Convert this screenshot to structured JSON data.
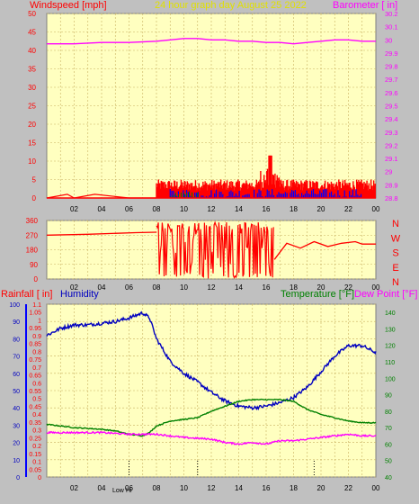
{
  "header": {
    "left_label": "Windspeed [mph]",
    "title": "24 hour graph day   August 25 2022",
    "right_label": "Barometer [ in]"
  },
  "colors": {
    "plot_bg": "#ffffc0",
    "frame_bg": "#c0c0c0",
    "grid": "#c8b060",
    "wind": "#ff0000",
    "gust": "#0000ff",
    "wind_green": "#008000",
    "barometer": "#ff00ff",
    "direction": "#ff0000",
    "humidity": "#0000c0",
    "temperature": "#008000",
    "dewpoint": "#ff00ff",
    "title": "#e0e000",
    "rain_axis": "#0000ff"
  },
  "x_ticks": [
    "02",
    "04",
    "06",
    "08",
    "10",
    "12",
    "14",
    "16",
    "18",
    "20",
    "22",
    "00"
  ],
  "direction_labels": [
    "N",
    "W",
    "S",
    "E",
    "N"
  ],
  "bottom_headers": {
    "rain": "Rainfall [ in]",
    "humidity": "Humidity",
    "temperature": "Temperature [°F]",
    "dewpoint": "Dew Point [°F]"
  },
  "bottom_markers": {
    "low": "Low",
    "hi": "Hi"
  },
  "chart_data": [
    {
      "type": "line",
      "name": "wind-barometer",
      "x_range": [
        0,
        24
      ],
      "y_left_ticks": [
        0,
        5,
        10,
        15,
        20,
        25,
        30,
        35,
        40,
        45,
        50
      ],
      "y_left_range": [
        0,
        50
      ],
      "y_right_ticks": [
        "28.8",
        "28.9",
        "29",
        "29.1",
        "29.2",
        "29.3",
        "29.4",
        "29.5",
        "29.6",
        "29.7",
        "29.8",
        "29.9",
        "30",
        "30.1",
        "30.2"
      ],
      "y_right_range": [
        28.8,
        30.2
      ],
      "barometer": {
        "x": [
          0,
          2,
          4,
          6,
          8,
          9,
          10,
          11,
          12,
          13,
          14,
          15,
          16,
          17,
          18,
          19,
          20,
          21,
          22,
          23,
          24
        ],
        "y": [
          29.97,
          29.97,
          29.98,
          29.98,
          29.99,
          30.0,
          30.01,
          30.01,
          30.0,
          30.0,
          29.99,
          29.99,
          29.98,
          29.98,
          29.97,
          29.98,
          29.99,
          30.0,
          30.0,
          29.99,
          29.99
        ]
      },
      "wind_baseline": {
        "x": [
          0,
          1.5,
          2.0,
          3.5,
          6.0,
          8.0
        ],
        "y": [
          0,
          1,
          0,
          1,
          0,
          0
        ]
      },
      "wind_active": {
        "x_start": 8.0,
        "x_end": 24,
        "peak_x": 16.3,
        "peak_y": 11.5
      }
    },
    {
      "type": "line",
      "name": "wind-direction",
      "x_range": [
        0,
        24
      ],
      "y_ticks": [
        0,
        90,
        180,
        270,
        360
      ],
      "y_range": [
        0,
        360
      ],
      "segments": [
        {
          "x": [
            0,
            3,
            6.5,
            8.0
          ],
          "y": [
            270,
            275,
            285,
            288
          ]
        },
        {
          "x": [
            16.6,
            17.5,
            18.5,
            19.5,
            20.5,
            21.5,
            22.5,
            23,
            24
          ],
          "y": [
            120,
            220,
            190,
            230,
            200,
            220,
            230,
            215,
            215
          ]
        }
      ],
      "active_range": [
        8.0,
        16.6
      ]
    },
    {
      "type": "line",
      "name": "humidity-temperature-rain",
      "x_range": [
        0,
        24
      ],
      "y_humidity_ticks": [
        0,
        10,
        20,
        30,
        40,
        50,
        60,
        70,
        80,
        90,
        100
      ],
      "y_humidity_range": [
        0,
        100
      ],
      "y_rain_ticks": [
        "0",
        "0.05",
        "0.1",
        "0.15",
        "0.2",
        "0.25",
        "0.3",
        "0.35",
        "0.4",
        "0.45",
        "0.5",
        "0.55",
        "0.6",
        "0.65",
        "0.7",
        "0.75",
        "0.8",
        "0.85",
        "0.9",
        "0.95",
        "1",
        "1.05",
        "1.1"
      ],
      "y_rain_range": [
        0,
        1.1
      ],
      "y_temp_ticks": [
        40,
        50,
        60,
        70,
        80,
        90,
        100,
        110,
        120,
        130,
        140
      ],
      "y_temp_range": [
        40,
        145
      ],
      "humidity": {
        "x": [
          0,
          1,
          2,
          3,
          4,
          5,
          6,
          7,
          7.5,
          8,
          9,
          10,
          11,
          12,
          13,
          14,
          15,
          16,
          17,
          18,
          19,
          20,
          21,
          22,
          23,
          24
        ],
        "y": [
          82,
          86,
          88,
          88,
          89,
          90,
          92,
          95,
          92,
          80,
          67,
          60,
          55,
          49,
          44,
          41,
          40,
          41,
          43,
          46,
          52,
          61,
          70,
          76,
          76,
          72
        ]
      },
      "temperature": {
        "x": [
          0,
          2,
          4,
          5,
          6,
          7,
          7.5,
          8,
          9,
          10,
          11,
          12,
          13,
          14,
          15,
          16,
          17,
          18,
          19,
          20,
          21,
          22,
          23,
          24
        ],
        "y": [
          72,
          70,
          69,
          68,
          66,
          65,
          67,
          71,
          74,
          75,
          76,
          80,
          83,
          86,
          87,
          87,
          87,
          86,
          81,
          78,
          76,
          74,
          73,
          73
        ]
      },
      "dewpoint": {
        "x": [
          0,
          2,
          4,
          6,
          8,
          10,
          12,
          13,
          14,
          15,
          16,
          17,
          18,
          19,
          20,
          21,
          22,
          23,
          24
        ],
        "y": [
          67,
          67,
          67,
          66,
          66,
          64,
          63,
          61,
          60,
          61,
          60,
          62,
          62,
          63,
          64,
          65,
          66,
          65,
          65
        ]
      },
      "rain": {
        "total": 0
      },
      "marker_x": [
        6.0,
        11.0,
        19.5
      ]
    }
  ]
}
